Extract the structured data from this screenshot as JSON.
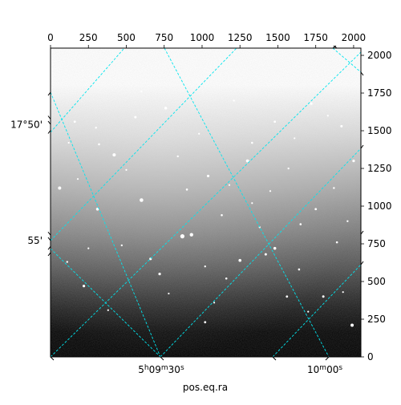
{
  "chart_data": {
    "type": "image",
    "title": "",
    "xlabel": "pos.eq.ra",
    "ylabel": "",
    "xlim": [
      0,
      2048
    ],
    "ylim": [
      0,
      2048
    ],
    "top_ticks": [
      {
        "value": 0,
        "label": "0"
      },
      {
        "value": 250,
        "label": "250"
      },
      {
        "value": 500,
        "label": "500"
      },
      {
        "value": 750,
        "label": "750"
      },
      {
        "value": 1000,
        "label": "1000"
      },
      {
        "value": 1250,
        "label": "1250"
      },
      {
        "value": 1500,
        "label": "1500"
      },
      {
        "value": 1750,
        "label": "1750"
      },
      {
        "value": 2000,
        "label": "2000"
      }
    ],
    "right_ticks": [
      {
        "value": 0,
        "label": "0"
      },
      {
        "value": 250,
        "label": "250"
      },
      {
        "value": 500,
        "label": "500"
      },
      {
        "value": 750,
        "label": "750"
      },
      {
        "value": 1000,
        "label": "1000"
      },
      {
        "value": 1250,
        "label": "1250"
      },
      {
        "value": 1500,
        "label": "1500"
      },
      {
        "value": 1750,
        "label": "1750"
      },
      {
        "value": 2000,
        "label": "2000"
      }
    ],
    "dec_labels": [
      {
        "label": "17°50'",
        "y": 1540
      },
      {
        "label": "55'",
        "y": 770
      }
    ],
    "ra_labels": [
      {
        "h": "5",
        "m": "09",
        "s": "30",
        "x": 730
      },
      {
        "m": "10",
        "s": "00",
        "x": 1810
      }
    ],
    "grid_color": "#00e5ee",
    "image_colormap": "gray",
    "stars": [
      [
        220,
        470,
        1.6
      ],
      [
        310,
        980,
        1.8
      ],
      [
        420,
        1340,
        2
      ],
      [
        600,
        1040,
        2.3
      ],
      [
        760,
        1650,
        1.7
      ],
      [
        930,
        810,
        2.2
      ],
      [
        1040,
        1200,
        1.6
      ],
      [
        1250,
        640,
        1.8
      ],
      [
        1300,
        1300,
        1.9
      ],
      [
        1480,
        1560,
        1.4
      ],
      [
        1480,
        720,
        1.8
      ],
      [
        1720,
        1680,
        1.6
      ],
      [
        1800,
        400,
        1.5
      ],
      [
        1920,
        1530,
        1.5
      ],
      [
        1990,
        210,
        2
      ],
      [
        2000,
        1300,
        1.6
      ],
      [
        160,
        1560,
        1.4
      ],
      [
        60,
        1120,
        2
      ],
      [
        110,
        630,
        1.2
      ],
      [
        720,
        550,
        1.6
      ],
      [
        870,
        800,
        2.6
      ],
      [
        1020,
        230,
        1.4
      ],
      [
        1130,
        940,
        1.3
      ],
      [
        1420,
        680,
        1.5
      ],
      [
        1560,
        400,
        1.4
      ],
      [
        1650,
        880,
        1.3
      ],
      [
        1750,
        980,
        1.4
      ],
      [
        1870,
        1120,
        1.2
      ],
      [
        1330,
        1420,
        1.3
      ],
      [
        560,
        1590,
        1.5
      ],
      [
        900,
        1110,
        1.3
      ],
      [
        660,
        650,
        1.6
      ],
      [
        1160,
        520,
        1.3
      ],
      [
        1380,
        860,
        1.2
      ],
      [
        1640,
        580,
        1.3
      ],
      [
        470,
        740,
        1.2
      ],
      [
        320,
        1410,
        1.3
      ],
      [
        840,
        1330,
        1.2
      ],
      [
        1570,
        1250,
        1.2
      ],
      [
        1890,
        760,
        1.3
      ],
      [
        1210,
        1700,
        1.2
      ],
      [
        380,
        310,
        1.1
      ],
      [
        1930,
        430,
        1.1
      ],
      [
        1610,
        1450,
        1.1
      ],
      [
        1020,
        600,
        1.2
      ],
      [
        250,
        720,
        1.1
      ],
      [
        1180,
        1140,
        1.1
      ],
      [
        1450,
        1100,
        1.1
      ],
      [
        180,
        1180,
        1.1
      ],
      [
        500,
        1240,
        1.1
      ],
      [
        1830,
        1600,
        1.1
      ],
      [
        300,
        1520,
        1.2
      ],
      [
        780,
        420,
        1.1
      ],
      [
        1330,
        1020,
        1.1
      ],
      [
        1700,
        300,
        1.1
      ],
      [
        980,
        1480,
        1.1
      ],
      [
        1960,
        900,
        1.2
      ],
      [
        600,
        1760,
        1.1
      ],
      [
        120,
        1420,
        1.1
      ],
      [
        1080,
        360,
        1.1
      ]
    ]
  }
}
